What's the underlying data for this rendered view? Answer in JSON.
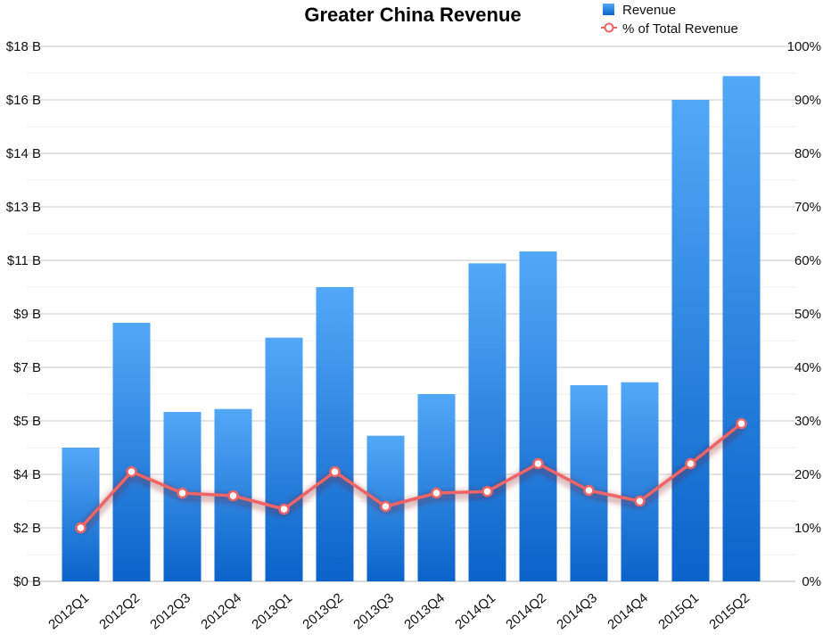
{
  "chart_data": {
    "type": "bar",
    "title": "Greater China Revenue",
    "categories": [
      "2012Q1",
      "2012Q2",
      "2012Q3",
      "2012Q4",
      "2013Q1",
      "2013Q2",
      "2013Q3",
      "2013Q4",
      "2014Q1",
      "2014Q2",
      "2014Q3",
      "2014Q4",
      "2015Q1",
      "2015Q2"
    ],
    "series": [
      {
        "name": "Revenue",
        "type": "bar",
        "axis": "left",
        "values": [
          4.5,
          8.7,
          5.7,
          5.8,
          8.2,
          9.9,
          4.9,
          6.3,
          10.7,
          11.1,
          6.6,
          6.7,
          16.2,
          17.0
        ],
        "color": "#1f77e0"
      },
      {
        "name": "% of Total Revenue",
        "type": "line",
        "axis": "right",
        "values": [
          10,
          20.5,
          16.5,
          16,
          13.5,
          20.5,
          14,
          16.5,
          16.8,
          22,
          17,
          15,
          22,
          29.5
        ],
        "color": "#f06466"
      }
    ],
    "y_left": {
      "range": [
        0,
        18
      ],
      "tick_labels": [
        "$0 B",
        "$2 B",
        "$4 B",
        "$5 B",
        "$7 B",
        "$9 B",
        "$11 B",
        "$13 B",
        "$14 B",
        "$16 B",
        "$18 B"
      ]
    },
    "y_right": {
      "range": [
        0,
        100
      ],
      "tick_labels": [
        "0%",
        "10%",
        "20%",
        "30%",
        "40%",
        "50%",
        "60%",
        "70%",
        "80%",
        "90%",
        "100%"
      ]
    },
    "grid": true,
    "legend_position": "top-right"
  }
}
